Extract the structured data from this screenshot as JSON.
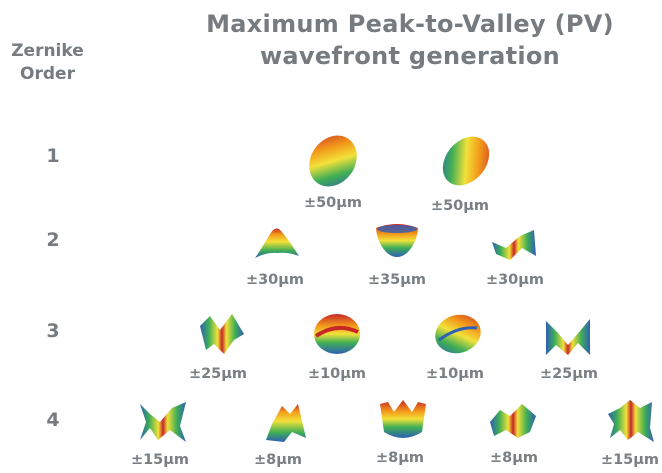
{
  "title": "Maximum Peak-to-Valley (PV) wavefront generation",
  "row_header": "Zernike Order",
  "rows": [
    {
      "order": "1",
      "terms": [
        {
          "shape": "tilt-right",
          "pv": "±50μm"
        },
        {
          "shape": "tilt-left",
          "pv": "±50μm"
        }
      ]
    },
    {
      "order": "2",
      "terms": [
        {
          "shape": "astig-arch",
          "pv": "±30μm"
        },
        {
          "shape": "defocus-bowl",
          "pv": "±35μm"
        },
        {
          "shape": "astig-saddle",
          "pv": "±30μm"
        }
      ]
    },
    {
      "order": "3",
      "terms": [
        {
          "shape": "trefoil-wave",
          "pv": "±25μm"
        },
        {
          "shape": "coma-oval",
          "pv": "±10μm"
        },
        {
          "shape": "coma-oval-2",
          "pv": "±10μm"
        },
        {
          "shape": "trefoil-cusp",
          "pv": "±25μm"
        }
      ]
    },
    {
      "order": "4",
      "terms": [
        {
          "shape": "tetrafoil-a",
          "pv": "±15μm"
        },
        {
          "shape": "astig2-a",
          "pv": "±8μm"
        },
        {
          "shape": "spherical",
          "pv": "±8μm"
        },
        {
          "shape": "astig2-b",
          "pv": "±8μm"
        },
        {
          "shape": "tetrafoil-b",
          "pv": "±15μm"
        }
      ]
    }
  ],
  "colors": {
    "high": "#c62828",
    "upper": "#f39a1a",
    "mid": "#f2e13a",
    "lower": "#3fae55",
    "low": "#2f5fb6",
    "text": "#767b80"
  }
}
